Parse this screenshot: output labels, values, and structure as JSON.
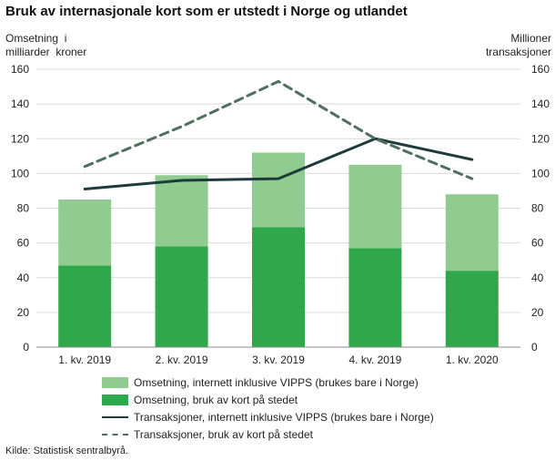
{
  "title": "Bruk av  internasjonale kort som er utstedt i Norge og utlandet",
  "source": "Kilde: Statistisk sentralbyrå.",
  "colors": {
    "light_green": "#90CC90",
    "dark_green": "#2EA84A",
    "solid_line": "#1D3B3A",
    "dash_line": "#4F6F5E",
    "grid": "#D9D9D9",
    "axis": "#888888"
  },
  "chart_data": {
    "type": "bar",
    "stacked": true,
    "categories": [
      "1. kv. 2019",
      "2. kv. 2019",
      "3. kv. 2019",
      "4. kv. 2019",
      "1. kv. 2020"
    ],
    "ylabel_left": "Omsetning  i\nmilliarder  kroner",
    "ylabel_right": "Millioner\ntransaksjoner",
    "ylim": [
      0,
      160
    ],
    "y2lim": [
      0,
      160
    ],
    "yticks": [
      0,
      20,
      40,
      60,
      80,
      100,
      120,
      140,
      160
    ],
    "y2ticks": [
      0,
      20,
      40,
      60,
      80,
      100,
      120,
      140,
      160
    ],
    "grid": "horizontal",
    "legend_position": "bottom",
    "series": [
      {
        "name": "Omsetning,  internett inklusive VIPPS (brukes bare i Norge)",
        "kind": "bar",
        "axis": "left",
        "values": [
          38,
          41,
          43,
          48,
          44
        ]
      },
      {
        "name": "Omsetning, bruk av kort på stedet",
        "kind": "bar",
        "axis": "left",
        "values": [
          47,
          58,
          69,
          57,
          44
        ]
      },
      {
        "name": "Transaksjoner,  internett inklusive VIPPS (brukes bare i Norge)",
        "kind": "line",
        "axis": "right",
        "values": [
          91,
          96,
          97,
          120,
          108
        ]
      },
      {
        "name": "Transaksjoner, bruk av kort på stedet",
        "kind": "dashed-line",
        "axis": "right",
        "values": [
          104,
          127,
          153,
          120,
          97
        ]
      }
    ]
  }
}
